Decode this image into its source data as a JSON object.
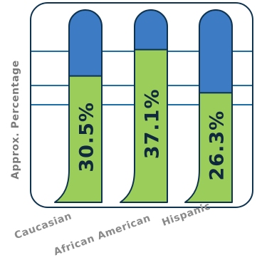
{
  "chart_data": {
    "type": "bar",
    "categories": [
      "Caucasian",
      "African American",
      "Hispanic"
    ],
    "values": [
      30.5,
      37.1,
      26.3
    ],
    "value_labels": [
      "30.5%",
      "37.1%",
      "26.3%"
    ],
    "xlabel": "",
    "ylabel": "Approx. Percentage",
    "ylim": [
      0,
      47
    ],
    "grid": true,
    "colors": {
      "fill": "#9acd5a",
      "track": "#3d7cc4",
      "outline": "#0e3350",
      "grid": "#1d6fa8",
      "label_text": "#10283d",
      "category_text": "#8a8a8a"
    }
  }
}
